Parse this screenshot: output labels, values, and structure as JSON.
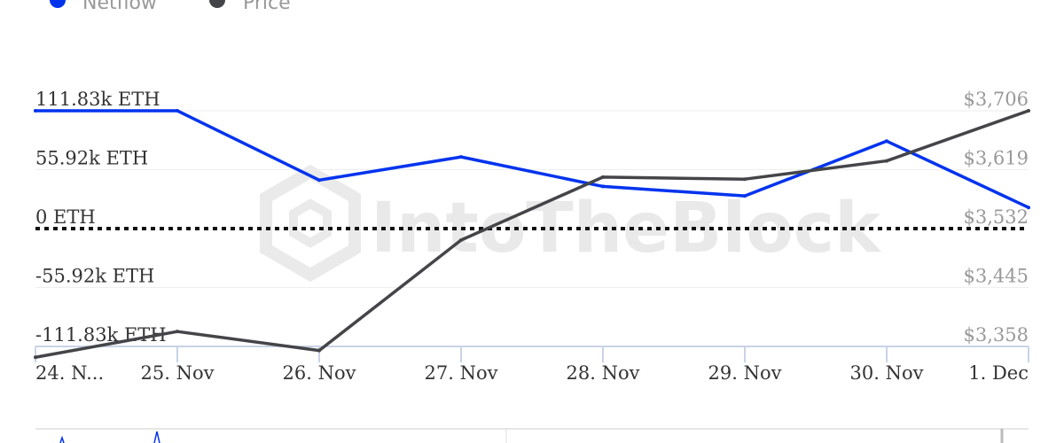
{
  "chart_data": {
    "type": "line",
    "categories": [
      "24. N...",
      "25. Nov",
      "26. Nov",
      "27. Nov",
      "28. Nov",
      "29. Nov",
      "30. Nov",
      "1. Dec"
    ],
    "series": [
      {
        "name": "Netflow",
        "color": "#0033ee",
        "axis": "left",
        "values": [
          111830,
          111830,
          46000,
          68000,
          40000,
          31000,
          83000,
          20000
        ]
      },
      {
        "name": "Price",
        "color": "#444548",
        "axis": "right",
        "values": [
          3342,
          3380,
          3352,
          3515,
          3608,
          3605,
          3632,
          3706
        ]
      }
    ],
    "y_left": {
      "ticks": [
        111830,
        55920,
        0,
        -55920,
        -111830
      ],
      "tick_labels": [
        "111.83k ETH",
        "55.92k ETH",
        "0 ETH",
        "-55.92k ETH",
        "-111.83k ETH"
      ],
      "range": [
        -111830,
        111830
      ]
    },
    "y_right": {
      "ticks": [
        3706,
        3619,
        3532,
        3445,
        3358
      ],
      "tick_labels": [
        "$3,706",
        "$3,619",
        "$3,532",
        "$3,445",
        "$3,358"
      ],
      "range": [
        3358,
        3706
      ]
    },
    "legend": {
      "placement": "top-left",
      "items": [
        {
          "label": "Netflow",
          "color": "#0033ee"
        },
        {
          "label": "Price",
          "color": "#444548"
        }
      ]
    },
    "zero_line": "dotted",
    "grid": true,
    "watermark": "IntoTheBlock"
  }
}
